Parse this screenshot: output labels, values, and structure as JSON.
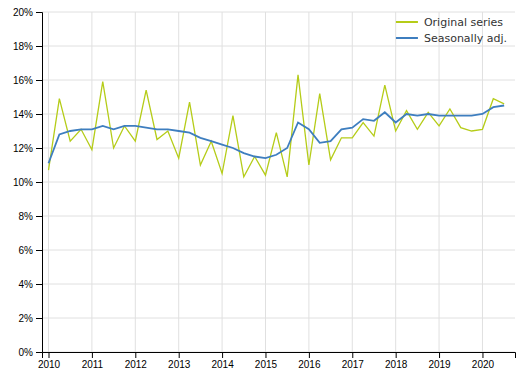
{
  "chart_data": {
    "type": "line",
    "x": [
      2010,
      2010.25,
      2010.5,
      2010.75,
      2011,
      2011.25,
      2011.5,
      2011.75,
      2012,
      2012.25,
      2012.5,
      2012.75,
      2013,
      2013.25,
      2013.5,
      2013.75,
      2014,
      2014.25,
      2014.5,
      2014.75,
      2015,
      2015.25,
      2015.5,
      2015.75,
      2016,
      2016.25,
      2016.5,
      2016.75,
      2017,
      2017.25,
      2017.5,
      2017.75,
      2018,
      2018.25,
      2018.5,
      2018.75,
      2019,
      2019.25,
      2019.5,
      2019.75,
      2020,
      2020.25,
      2020.5
    ],
    "series": [
      {
        "name": "Original series",
        "color": "#b5cc18",
        "values": [
          10.7,
          14.9,
          12.4,
          13.1,
          11.9,
          15.9,
          12.0,
          13.3,
          12.4,
          15.4,
          12.5,
          13.0,
          11.4,
          14.7,
          11.0,
          12.4,
          10.5,
          13.9,
          10.3,
          11.5,
          10.4,
          12.9,
          10.3,
          16.3,
          11.0,
          15.2,
          11.3,
          12.6,
          12.6,
          13.5,
          12.7,
          15.7,
          13.0,
          14.2,
          13.1,
          14.1,
          13.3,
          14.3,
          13.2,
          13.0,
          13.1,
          14.9,
          14.6
        ]
      },
      {
        "name": "Seasonally adj.",
        "color": "#3e7ebf",
        "values": [
          11.1,
          12.8,
          13.0,
          13.1,
          13.1,
          13.3,
          13.1,
          13.3,
          13.3,
          13.2,
          13.1,
          13.1,
          13.0,
          12.9,
          12.6,
          12.4,
          12.2,
          12.0,
          11.7,
          11.5,
          11.4,
          11.6,
          12.0,
          13.5,
          13.1,
          12.3,
          12.4,
          13.1,
          13.2,
          13.7,
          13.6,
          14.1,
          13.5,
          14.0,
          13.9,
          14.0,
          13.9,
          13.9,
          13.9,
          13.9,
          14.0,
          14.4,
          14.5
        ]
      }
    ],
    "xlim": [
      2009.85,
      2020.75
    ],
    "xticks": [
      2010,
      2011,
      2012,
      2013,
      2014,
      2015,
      2016,
      2017,
      2018,
      2019,
      2020
    ],
    "ylim": [
      0,
      20
    ],
    "yticks": [
      {
        "value": 0,
        "label": "0%"
      },
      {
        "value": 2,
        "label": "2%"
      },
      {
        "value": 4,
        "label": "4%"
      },
      {
        "value": 6,
        "label": "6%"
      },
      {
        "value": 8,
        "label": "8%"
      },
      {
        "value": 10,
        "label": "10%"
      },
      {
        "value": 12,
        "label": "12%"
      },
      {
        "value": 14,
        "label": "14%"
      },
      {
        "value": 16,
        "label": "16%"
      },
      {
        "value": 18,
        "label": "18%"
      },
      {
        "value": 20,
        "label": "20%"
      }
    ],
    "grid": true,
    "legend": "upper-right"
  }
}
